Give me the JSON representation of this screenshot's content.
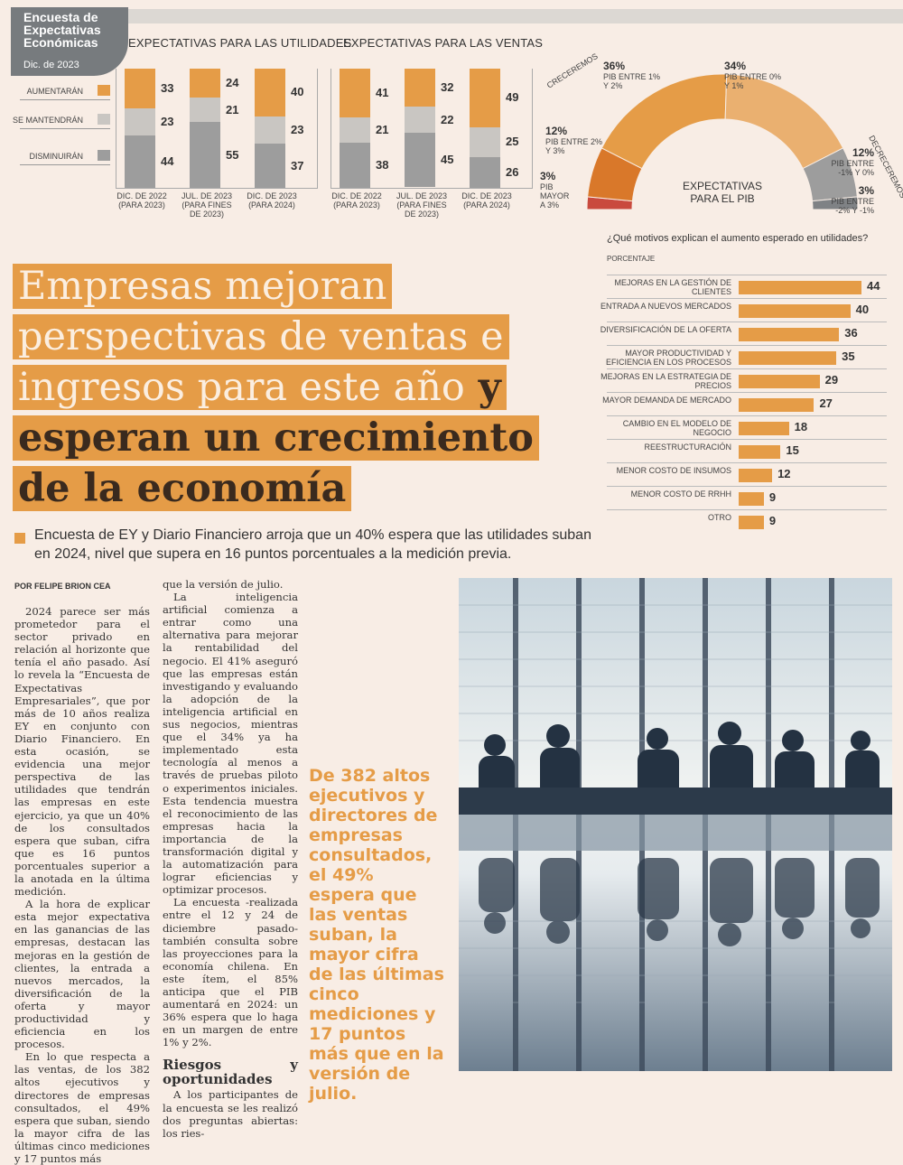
{
  "badge": {
    "title": "Encuesta de Expectativas Económicas",
    "date": "Dic. de 2023"
  },
  "legend": [
    {
      "label": "AUMENTARÁN",
      "color": "#e59c47"
    },
    {
      "label": "SE MANTENDRÁN",
      "color": "#c9c6c2"
    },
    {
      "label": "DISMINUIRÁN",
      "color": "#9d9d9d"
    }
  ],
  "colors": {
    "accent": "#e59c47",
    "mid": "#c9c6c2",
    "low": "#9d9d9d",
    "pib_dark": "#d9782a",
    "pib_red": "#c94a3e"
  },
  "chart_data": [
    {
      "type": "bar",
      "title": "EXPECTATIVAS PARA LAS UTILIDADES",
      "stacked": true,
      "categories": [
        [
          "DIC. DE 2022",
          "(PARA 2023)"
        ],
        [
          "JUL. DE 2023",
          "(PARA FINES",
          "DE 2023)"
        ],
        [
          "DIC. DE 2023",
          "(PARA 2024)"
        ]
      ],
      "series": [
        {
          "name": "AUMENTARÁN",
          "values": [
            33,
            24,
            40
          ]
        },
        {
          "name": "SE MANTENDRÁN",
          "values": [
            23,
            21,
            23
          ]
        },
        {
          "name": "DISMINUIRÁN",
          "values": [
            44,
            55,
            37
          ]
        }
      ]
    },
    {
      "type": "bar",
      "title": "EXPECTATIVAS PARA LAS VENTAS",
      "stacked": true,
      "categories": [
        [
          "DIC. DE 2022",
          "(PARA 2023)"
        ],
        [
          "JUL. DE 2023",
          "(PARA FINES",
          "DE 2023)"
        ],
        [
          "DIC. DE 2023",
          "(PARA 2024)"
        ]
      ],
      "series": [
        {
          "name": "AUMENTARÁN",
          "values": [
            41,
            32,
            49
          ]
        },
        {
          "name": "SE MANTENDRÁN",
          "values": [
            21,
            22,
            25
          ]
        },
        {
          "name": "DISMINUIRÁN",
          "values": [
            38,
            45,
            26
          ]
        }
      ]
    },
    {
      "type": "pie",
      "title": "EXPECTATIVAS PARA EL PIB",
      "side_labels": {
        "left": "CRECEREMOS",
        "right": "DECRECEREMOS"
      },
      "slices": [
        {
          "value": 3,
          "label": "PIB MAYOR A 3%",
          "pct": "3%"
        },
        {
          "value": 12,
          "label": "PIB ENTRE 2% Y 3%",
          "pct": "12%"
        },
        {
          "value": 36,
          "label": "PIB ENTRE 1% Y 2%",
          "pct": "36%"
        },
        {
          "value": 34,
          "label": "PIB ENTRE 0% Y 1%",
          "pct": "34%"
        },
        {
          "value": 12,
          "label": "PIB ENTRE -1% Y 0%",
          "pct": "12%"
        },
        {
          "value": 3,
          "label": "PIB ENTRE -2% Y -1%",
          "pct": "3%"
        }
      ]
    },
    {
      "type": "bar",
      "orientation": "horizontal",
      "title": "¿Qué motivos explican el aumento esperado en utilidades?",
      "ylabel": "PORCENTAJE",
      "categories": [
        "MEJORAS EN LA GESTIÓN DE CLIENTES",
        "ENTRADA A NUEVOS MERCADOS",
        "DIVERSIFICACIÓN DE LA OFERTA",
        "MAYOR PRODUCTIVIDAD Y EFICIENCIA EN LOS PROCESOS",
        "MEJORAS EN LA ESTRATEGIA DE PRECIOS",
        "MAYOR DEMANDA DE MERCADO",
        "CAMBIO EN EL MODELO DE NEGOCIO",
        "REESTRUCTURACIÓN",
        "MENOR COSTO DE INSUMOS",
        "MENOR COSTO DE RRHH",
        "OTRO"
      ],
      "values": [
        44,
        40,
        36,
        35,
        29,
        27,
        18,
        15,
        12,
        9,
        9
      ]
    }
  ],
  "headline": {
    "line1": "Empresas mejoran",
    "line2": "perspectivas de ventas e",
    "line3a": "ingresos para este año",
    "line3b": " y",
    "line4": "esperan un crecimiento",
    "line5": "de la economía"
  },
  "subtitle": "Encuesta de EY y Diario Financiero arroja que un 40% espera que las utilidades suban en 2024, nivel que supera en 16 puntos porcentuales a la medición previa.",
  "byline": "POR FELIPE BRION CEA",
  "col1": [
    "2024 parece ser más prometedor para el sector privado en relación al horizonte que tenía el año pasado. Así lo revela la “Encuesta de Expectativas Empresariales”, que por más de 10 años realiza EY en conjunto con Diario Financiero. En esta ocasión, se evidencia una mejor perspectiva de las utilidades que tendrán las empresas en este ejercicio, ya que un 40% de los consultados espera que suban, cifra que es 16 puntos porcentuales superior a la anotada en la última medición.",
    "A la hora de explicar esta mejor expectativa en las ganancias de las empresas, destacan las mejoras en la gestión de clientes, la entrada a nuevos mercados, la diversificación de la oferta y mayor productividad y eficiencia en los procesos.",
    "En lo que respecta a las ventas, de los 382 altos ejecutivos y directores de empresas consultados, el 49% espera que suban, siendo la mayor cifra de las últimas cinco mediciones y 17 puntos más"
  ],
  "col2": [
    "que la versión de julio.",
    "La inteligencia artificial comienza a entrar como una alternativa para mejorar la rentabilidad del negocio. El 41% aseguró que las empresas están investigando y evaluando la adopción de la inteligencia artificial en sus negocios, mientras que el 34% ya ha implementado esta tecnología al menos a través de pruebas piloto o experimentos iniciales. Esta tendencia muestra el reconocimiento de las empresas hacia la importancia de la transformación digital y la automatización para lograr eficiencias y optimizar procesos.",
    "La encuesta -realizada entre el 12 y 24 de diciembre pasado- también consulta sobre las proyecciones para la economía chilena. En este ítem, el 85% anticipa que el PIB aumentará en 2024: un 36% espera que lo haga en un margen de entre 1% y 2%."
  ],
  "col2_heading": "Riesgos y oportunidades",
  "col2_after": "A los participantes de la encuesta se les realizó dos preguntas abiertas: los ries-",
  "pullquote": "De 382 altos ejecutivos y directores de empresas consultados, el 49% espera que las ventas suban, la mayor cifra de las últimas cinco mediciones y 17 puntos más que en la versión de julio."
}
